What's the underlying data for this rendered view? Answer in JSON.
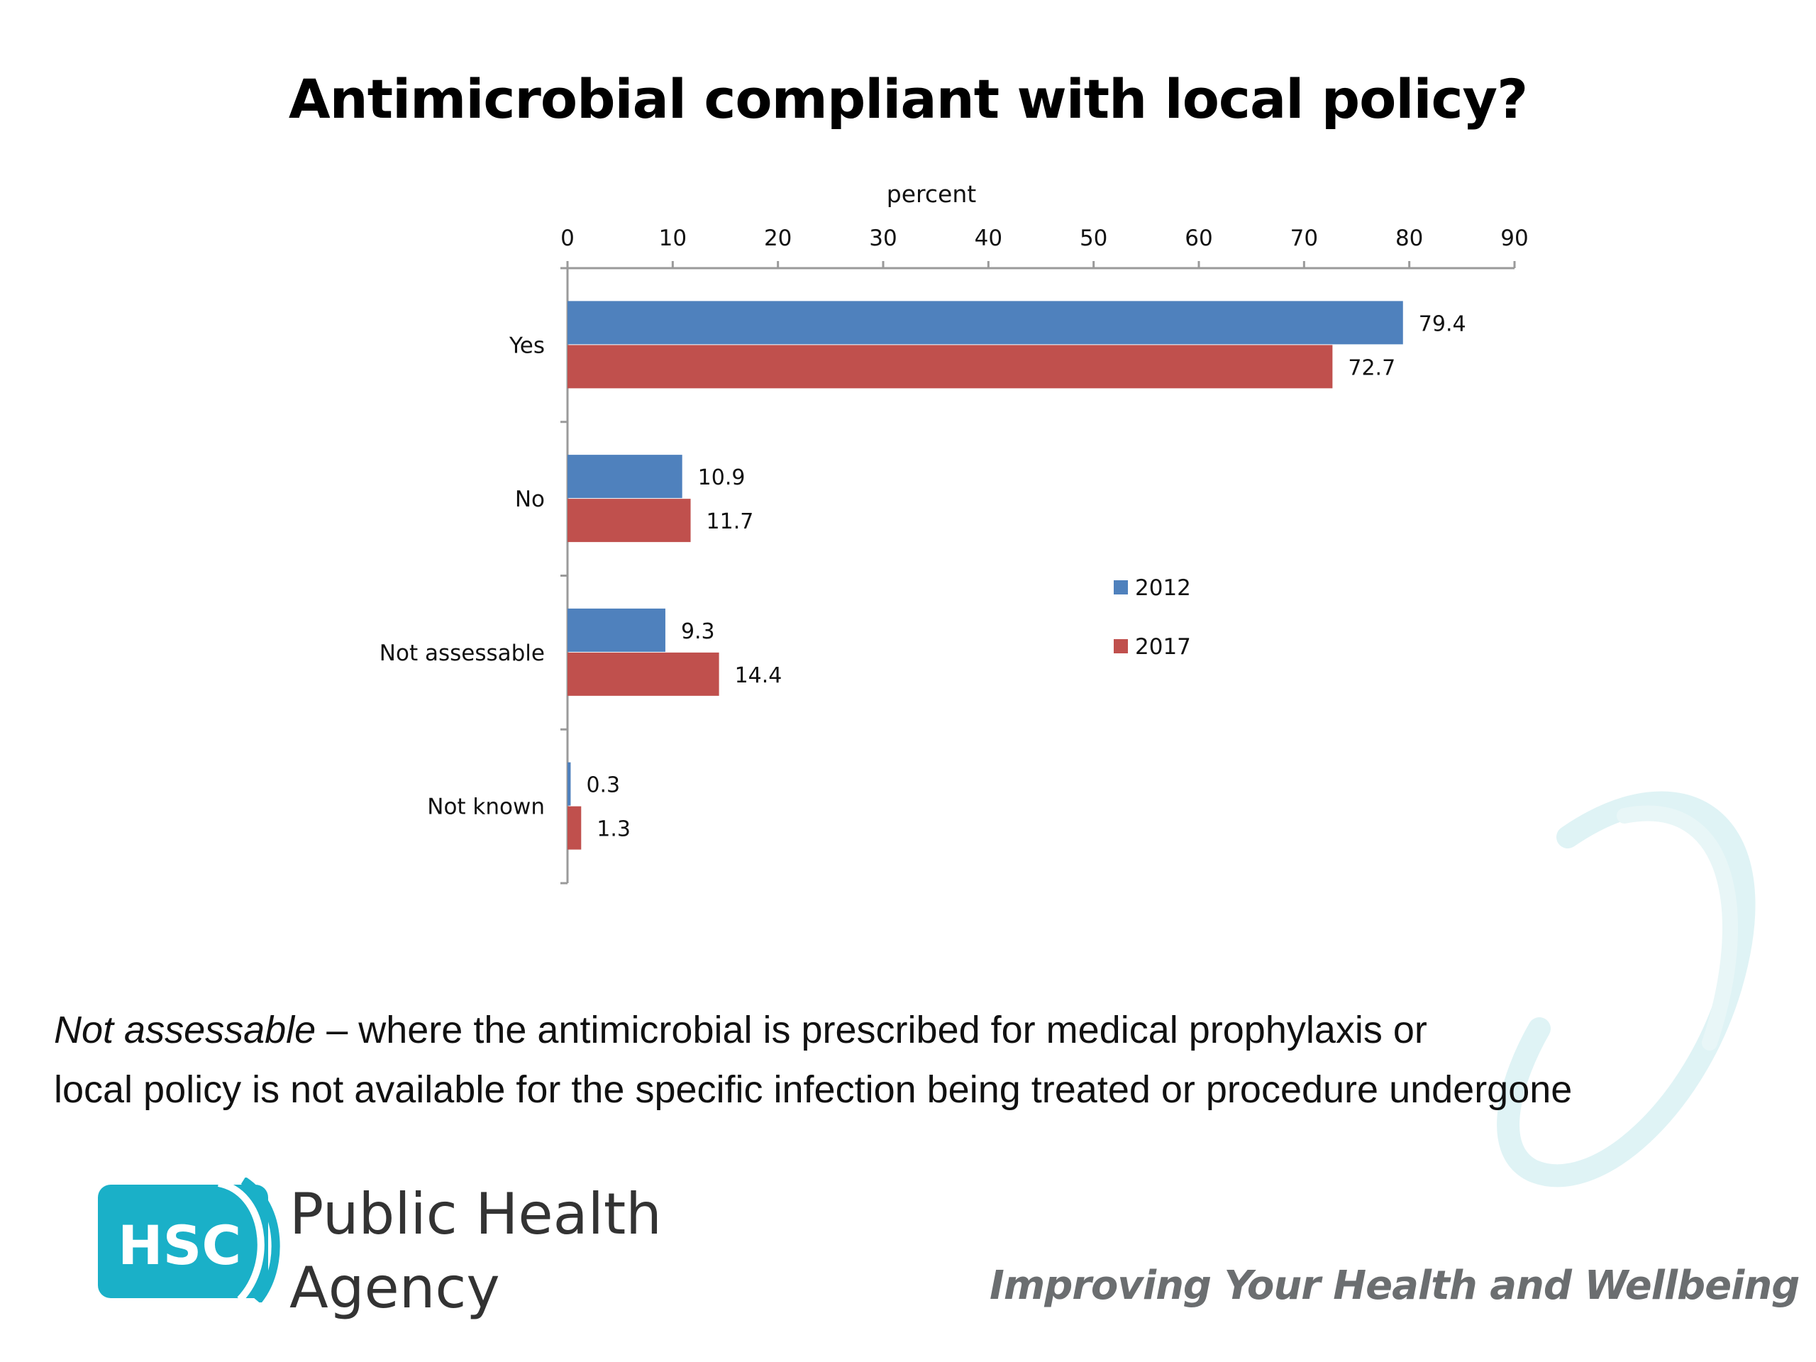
{
  "chart_data": {
    "type": "bar",
    "orientation": "horizontal",
    "title": "Antimicrobial compliant with local policy?",
    "xlabel": "percent",
    "ylabel": "",
    "xlim": [
      0,
      90
    ],
    "x_ticks": [
      0,
      10,
      20,
      30,
      40,
      50,
      60,
      70,
      80,
      90
    ],
    "categories": [
      "Yes",
      "No",
      "Not assessable",
      "Not known"
    ],
    "series": [
      {
        "name": "2012",
        "color": "#4f81bd",
        "values": [
          79.4,
          10.9,
          9.3,
          0.3
        ]
      },
      {
        "name": "2017",
        "color": "#c0504d",
        "values": [
          72.7,
          11.7,
          14.4,
          1.3
        ]
      }
    ],
    "data_labels": true,
    "legend_position": "center-right",
    "grid": false
  },
  "footnote": {
    "term": "Not assessable",
    "line1_rest": " – where the antimicrobial is prescribed for medical prophylaxis or",
    "line2": "local policy is not available for the specific infection being treated or procedure undergone"
  },
  "branding": {
    "logo_text": "HSC",
    "logo_color": "#1ab0c8",
    "org_line1": "Public Health",
    "org_line2": "Agency",
    "tagline": "Improving Your Health and Wellbeing"
  }
}
